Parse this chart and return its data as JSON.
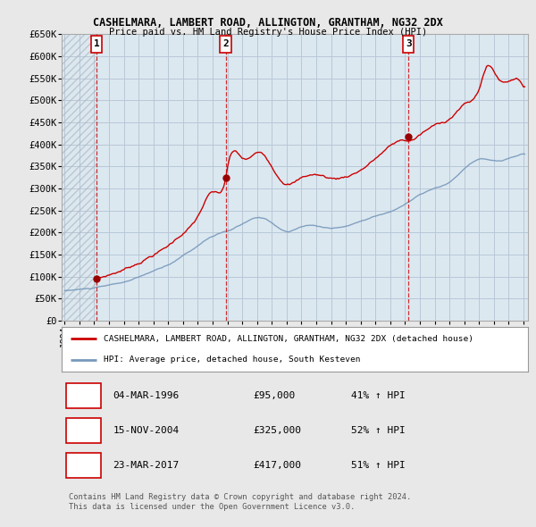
{
  "title": "CASHELMARA, LAMBERT ROAD, ALLINGTON, GRANTHAM, NG32 2DX",
  "subtitle": "Price paid vs. HM Land Registry's House Price Index (HPI)",
  "legend_label_red": "CASHELMARA, LAMBERT ROAD, ALLINGTON, GRANTHAM, NG32 2DX (detached house)",
  "legend_label_blue": "HPI: Average price, detached house, South Kesteven",
  "footer": "Contains HM Land Registry data © Crown copyright and database right 2024.\nThis data is licensed under the Open Government Licence v3.0.",
  "transactions": [
    {
      "num": 1,
      "date": "04-MAR-1996",
      "price": "£95,000",
      "change": "41% ↑ HPI"
    },
    {
      "num": 2,
      "date": "15-NOV-2004",
      "price": "£325,000",
      "change": "52% ↑ HPI"
    },
    {
      "num": 3,
      "date": "23-MAR-2017",
      "price": "£417,000",
      "change": "51% ↑ HPI"
    }
  ],
  "transaction_years": [
    1996.17,
    2004.88,
    2017.23
  ],
  "transaction_prices": [
    95000,
    325000,
    417000
  ],
  "ylim": [
    0,
    650000
  ],
  "xlim_start": 1993.8,
  "xlim_end": 2025.3,
  "ytick_vals": [
    0,
    50000,
    100000,
    150000,
    200000,
    250000,
    300000,
    350000,
    400000,
    450000,
    500000,
    550000,
    600000,
    650000
  ],
  "ytick_labels": [
    "£0",
    "£50K",
    "£100K",
    "£150K",
    "£200K",
    "£250K",
    "£300K",
    "£350K",
    "£400K",
    "£450K",
    "£500K",
    "£550K",
    "£600K",
    "£650K"
  ],
  "bg_color": "#e8e8e8",
  "plot_bg_color": "#dce8f0",
  "red_color": "#cc0000",
  "blue_color": "#7799bb",
  "grid_color": "#b8c8d8",
  "hatch_color": "#c0c0c0"
}
